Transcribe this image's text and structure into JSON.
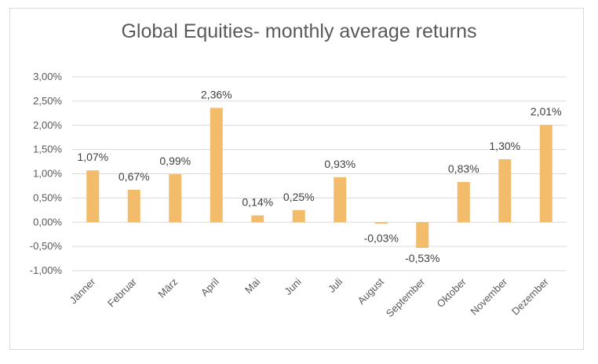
{
  "chart_data": {
    "type": "bar",
    "title": "Global Equities- monthly average returns",
    "categories": [
      "Jänner",
      "Februar",
      "März",
      "April",
      "Mai",
      "Juni",
      "Juli",
      "August",
      "September",
      "Oktober",
      "November",
      "Dezember"
    ],
    "values": [
      1.07,
      0.67,
      0.99,
      2.36,
      0.14,
      0.25,
      0.93,
      -0.03,
      -0.53,
      0.83,
      1.3,
      2.01
    ],
    "value_labels": [
      "1,07%",
      "0,67%",
      "0,99%",
      "2,36%",
      "0,14%",
      "0,25%",
      "0,93%",
      "-0,03%",
      "-0,53%",
      "0,83%",
      "1,30%",
      "2,01%"
    ],
    "ylim": [
      -1.0,
      3.0
    ],
    "yticks": [
      3.0,
      2.5,
      2.0,
      1.5,
      1.0,
      0.5,
      0.0,
      -0.5,
      -1.0
    ],
    "ytick_labels": [
      "3,00%",
      "2,50%",
      "2,00%",
      "1,50%",
      "1,00%",
      "0,50%",
      "0,00%",
      "-0,50%",
      "-1,00%"
    ],
    "xlabel": "",
    "ylabel": "",
    "grid": true,
    "legend": "none",
    "bar_color": "#f2bc6b",
    "grid_color": "#d9d9d9"
  }
}
